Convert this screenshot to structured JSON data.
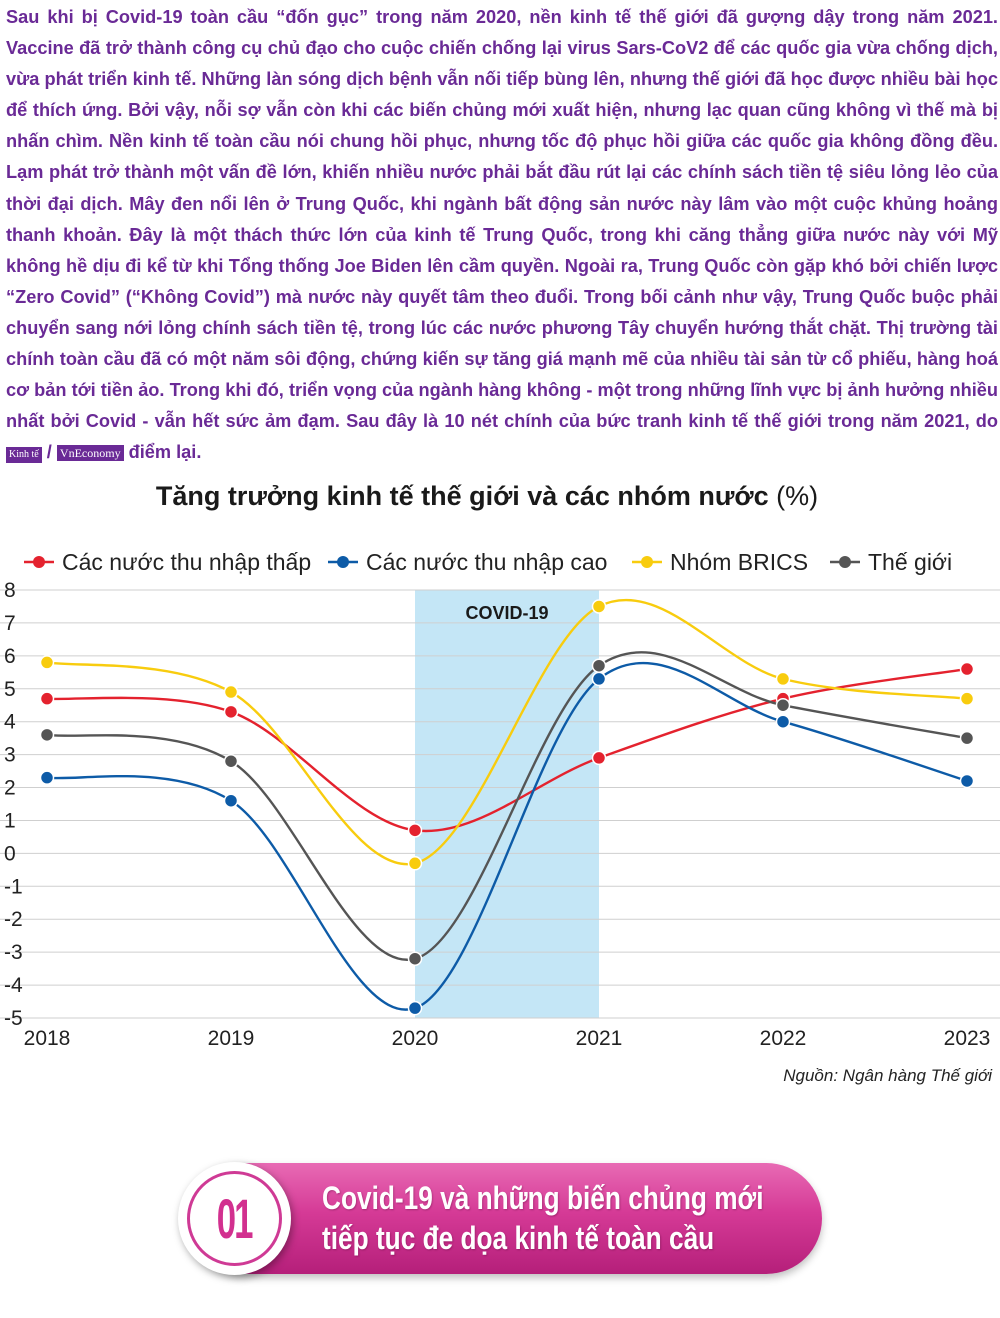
{
  "intro": {
    "text": "Sau khi bị Covid-19 toàn cầu “đốn gục” trong năm 2020, nền kinh tế thế giới đã gượng dậy trong năm 2021. Vaccine đã trở thành công cụ chủ đạo cho cuộc chiến chống lại virus Sars-CoV2 để các quốc gia vừa chống dịch, vừa phát triển kinh tế. Những làn sóng dịch bệnh vẫn nối tiếp bùng lên, nhưng thế giới đã học được nhiều bài học để thích ứng. Bởi vậy, nỗi sợ vẫn còn khi các biến chủng mới xuất hiện, nhưng lạc quan cũng không vì thế mà bị nhấn chìm. Nền kinh tế toàn cầu nói chung hồi phục, nhưng tốc độ phục hồi giữa các quốc gia không đồng đều. Lạm phát trở thành một vấn đề lớn, khiến nhiều nước phải bắt đầu rút lại các chính sách tiền tệ siêu lỏng lẻo của thời đại dịch. Mây đen nổi lên ở Trung Quốc, khi ngành bất động sản nước này lâm vào một cuộc khủng hoảng thanh khoản. Đây là một thách thức lớn của kinh tế Trung Quốc, trong khi căng thẳng giữa nước này với Mỹ không hề dịu đi kể từ khi Tổng thống Joe Biden lên cầm quyền. Ngoài ra, Trung Quốc còn gặp khó bởi chiến lược “Zero Covid” (“Không Covid”) mà nước này quyết tâm theo đuổi. Trong bối cảnh như vậy, Trung Quốc buộc phải chuyển sang nới lỏng chính sách tiền tệ, trong lúc các nước phương Tây chuyển hướng thắt chặt. Thị trường tài chính toàn cầu đã có một năm sôi động, chứng kiến sự tăng giá mạnh mẽ của nhiều tài sản từ cổ phiếu, hàng hoá cơ bản tới tiền ảo. Trong khi đó, triển vọng của ngành hàng không - một trong những lĩnh vực bị ảnh hưởng nhiều nhất bởi Covid - vẫn hết sức ảm đạm. Sau đây là 10 nét chính của bức tranh kinh tế thế giới trong năm 2021, do",
    "logo1": "Kinh tế",
    "separator": "/",
    "logo2": "VnEconomy",
    "ending": "điểm lại."
  },
  "chart_data": {
    "type": "line",
    "title": "Tăng trưởng kinh tế thế giới và các nhóm nước",
    "title_unit": "(%)",
    "x": [
      "2018",
      "2019",
      "2020",
      "2021",
      "2022",
      "2023"
    ],
    "ylim": [
      -5,
      8
    ],
    "yticks": [
      8,
      7,
      6,
      5,
      4,
      3,
      2,
      1,
      0,
      -1,
      -2,
      -3,
      -4,
      -5
    ],
    "grid": true,
    "legend_position": "top",
    "smooth": true,
    "annotation": {
      "label": "COVID-19",
      "from": "2020",
      "to": "2021",
      "color": "#c4e6f6"
    },
    "series": [
      {
        "name": "Các nước thu nhập thấp",
        "color": "#e4222e",
        "values": [
          4.7,
          4.3,
          0.7,
          2.9,
          4.7,
          5.6
        ]
      },
      {
        "name": "Các nước thu nhập cao",
        "color": "#0d5ba7",
        "values": [
          2.3,
          1.6,
          -4.7,
          5.3,
          4.0,
          2.2
        ]
      },
      {
        "name": "Nhóm BRICS",
        "color": "#f8cc0e",
        "values": [
          5.8,
          4.9,
          -0.3,
          7.5,
          5.3,
          4.7
        ]
      },
      {
        "name": "Thế giới",
        "color": "#555555",
        "values": [
          3.6,
          2.8,
          -3.2,
          5.7,
          4.5,
          3.5
        ]
      }
    ]
  },
  "source": "Nguồn: Ngân hàng Thế giới",
  "banner": {
    "number": "01",
    "title_line1": "Covid-19 và những biến chủng mới",
    "title_line2": "tiếp tục đe dọa kinh tế toàn cầu"
  }
}
